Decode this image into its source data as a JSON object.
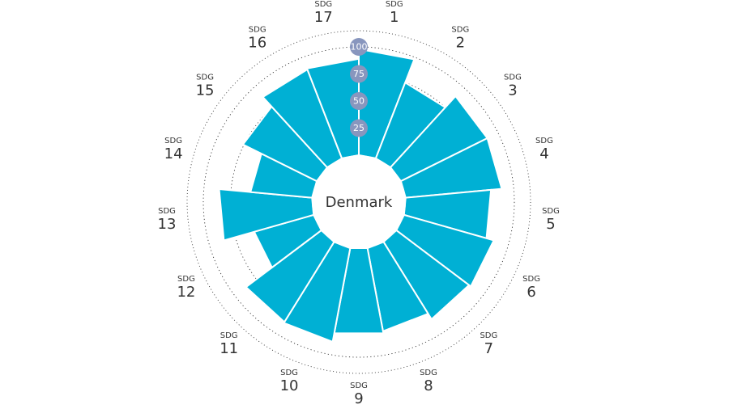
{
  "chart_data": {
    "type": "polar-bar",
    "center_label": "Denmark",
    "radial_ticks": [
      "25",
      "50",
      "75",
      "100"
    ],
    "tick_values": [
      25,
      50,
      75,
      100
    ],
    "rmax": 100,
    "grid": true,
    "label_prefix": "SDG",
    "categories": [
      "1",
      "2",
      "3",
      "4",
      "5",
      "6",
      "7",
      "8",
      "9",
      "10",
      "11",
      "12",
      "13",
      "14",
      "15",
      "16",
      "17"
    ],
    "values": [
      98,
      75,
      89,
      89,
      79,
      86,
      84,
      78,
      80,
      88,
      87,
      57,
      86,
      57,
      76,
      88,
      89
    ],
    "colors": {
      "bar": "#00b0d4",
      "bar_separator": "#ffffff",
      "tick_badge": "#8896be",
      "tick_text": "#ffffff",
      "grid": "#333333",
      "label": "#333333"
    }
  }
}
